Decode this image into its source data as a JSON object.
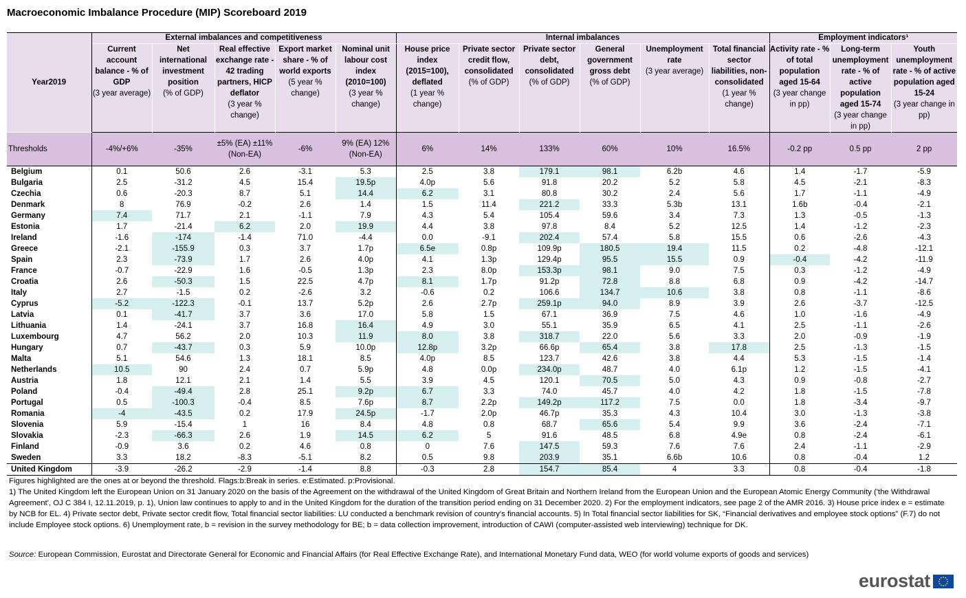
{
  "title": "Macroeconomic Imbalance Procedure (MIP) Scoreboard 2019",
  "year_label": "Year2019",
  "thresholds_label": "Thresholds",
  "groups": [
    {
      "label": "External imbalances and competitiveness"
    },
    {
      "label": "Internal imbalances"
    },
    {
      "label": "Employment indicators¹"
    }
  ],
  "columns": [
    {
      "bold": "Current account balance - % of GDP",
      "normal": "(3 year average)",
      "threshold": "-4%/+6%"
    },
    {
      "bold": "Net international investment position",
      "normal": "(% of GDP)",
      "threshold": "-35%"
    },
    {
      "bold": "Real effective exchange rate - 42 trading partners, HICP deflator",
      "normal": "(3 year % change)",
      "threshold": "±5% (EA) ±11% (Non-EA)"
    },
    {
      "bold": "Export market share - % of world exports",
      "normal": "(5 year % change)",
      "threshold": "-6%"
    },
    {
      "bold": "Nominal unit labour cost index (2010=100)",
      "normal": "(3 year % change)",
      "threshold": "9% (EA) 12% (Non-EA)"
    },
    {
      "bold": "House price index (2015=100), deflated",
      "normal": "(1 year % change)",
      "threshold": "6%"
    },
    {
      "bold": "Private sector credit flow, consolidated",
      "normal": "(% of GDP)",
      "threshold": "14%"
    },
    {
      "bold": "Private sector debt, consolidated",
      "normal": "(% of GDP)",
      "threshold": "133%"
    },
    {
      "bold": "General government gross debt",
      "normal": "(% of GDP)",
      "threshold": "60%"
    },
    {
      "bold": "Unemployment rate",
      "normal": "(3 year average)",
      "threshold": "10%"
    },
    {
      "bold": "Total financial sector liabilities, non-consolidated",
      "normal": "(1 year % change)",
      "threshold": "16.5%"
    },
    {
      "bold": "Activity rate - % of total population aged 15-64",
      "normal": "(3 year change in pp)",
      "threshold": "-0.2 pp"
    },
    {
      "bold": "Long-term unemployment rate - % of active population aged 15-74",
      "normal": "(3 year change in pp)",
      "threshold": "0.5 pp"
    },
    {
      "bold": "Youth unemployment rate - % of active population aged 15-24",
      "normal": "(3 year change in pp)",
      "threshold": "2 pp"
    }
  ],
  "rows": [
    {
      "country": "Belgium",
      "values": [
        "0.1",
        "50.6",
        "2.6",
        "-3.1",
        "5.3",
        "2.5",
        "3.8",
        "179.1",
        "98.1",
        "6.2b",
        "4.6",
        "1.4",
        "-1.7",
        "-5.9"
      ],
      "hl": [
        7,
        8
      ]
    },
    {
      "country": "Bulgaria",
      "values": [
        "2.5",
        "-31.2",
        "4.5",
        "15.4",
        "19.5p",
        "4.0p",
        "5.6",
        "91.8",
        "20.2",
        "5.2",
        "5.8",
        "4.5",
        "-2.1",
        "-8.3"
      ],
      "hl": [
        4
      ]
    },
    {
      "country": "Czechia",
      "values": [
        "0.6",
        "-20.3",
        "8.7",
        "5.1",
        "14.4",
        "6.2",
        "3.1",
        "80.8",
        "30.2",
        "2.4",
        "5.6",
        "1.7",
        "-1.1",
        "-4.9"
      ],
      "hl": [
        4,
        5
      ]
    },
    {
      "country": "Denmark",
      "values": [
        "8",
        "76.9",
        "-0.2",
        "2.6",
        "1.4",
        "1.5",
        "11.4",
        "221.2",
        "33.3",
        "5.3b",
        "13.1",
        "1.6b",
        "-0.4",
        "-2.1"
      ],
      "hl": [
        7
      ]
    },
    {
      "country": "Germany",
      "values": [
        "7.4",
        "71.7",
        "2.1",
        "-1.1",
        "7.9",
        "4.3",
        "5.4",
        "105.4",
        "59.6",
        "3.4",
        "7.3",
        "1.3",
        "-0.5",
        "-1.3"
      ],
      "hl": [
        0
      ]
    },
    {
      "country": "Estonia",
      "values": [
        "1.7",
        "-21.4",
        "6.2",
        "2.0",
        "19.9",
        "4.4",
        "3.8",
        "97.8",
        "8.4",
        "5.2",
        "12.5",
        "1.4",
        "-1.2",
        "-2.3"
      ],
      "hl": [
        2,
        4
      ]
    },
    {
      "country": "Ireland",
      "values": [
        "-1.6",
        "-174",
        "-1.4",
        "71.0",
        "-4.4",
        "0.0",
        "-9.1",
        "202.4",
        "57.4",
        "5.8",
        "15.5",
        "0.6",
        "-2.6",
        "-4.3"
      ],
      "hl": [
        1,
        7
      ]
    },
    {
      "country": "Greece",
      "values": [
        "-2.1",
        "-155.9",
        "0.3",
        "3.7",
        "1.7p",
        "6.5e",
        "0.8p",
        "109.9p",
        "180.5",
        "19.4",
        "11.5",
        "0.2",
        "-4.8",
        "-12.1"
      ],
      "hl": [
        1,
        5,
        8,
        9
      ]
    },
    {
      "country": "Spain",
      "values": [
        "2.3",
        "-73.9",
        "1.7",
        "2.6",
        "4.0p",
        "4.1",
        "1.3p",
        "129.4p",
        "95.5",
        "15.5",
        "0.9",
        "-0.4",
        "-4.2",
        "-11.9"
      ],
      "hl": [
        1,
        8,
        9,
        11
      ]
    },
    {
      "country": "France",
      "values": [
        "-0.7",
        "-22.9",
        "1.6",
        "-0.5",
        "1.3p",
        "2.3",
        "8.0p",
        "153.3p",
        "98.1",
        "9.0",
        "7.5",
        "0.3",
        "-1.2",
        "-4.9"
      ],
      "hl": [
        7,
        8
      ]
    },
    {
      "country": "Croatia",
      "values": [
        "2.6",
        "-50.3",
        "1.5",
        "22.5",
        "4.7p",
        "8.1",
        "1.7p",
        "91.2p",
        "72.8",
        "8.8",
        "6.8",
        "0.9",
        "-4.2",
        "-14.7"
      ],
      "hl": [
        1,
        5,
        8
      ]
    },
    {
      "country": "Italy",
      "values": [
        "2.7",
        "-1.5",
        "0.2",
        "-2.6",
        "3.2",
        "-0.6",
        "0.2",
        "106.6",
        "134.7",
        "10.6",
        "3.8",
        "0.8",
        "-1.1",
        "-8.6"
      ],
      "hl": [
        8,
        9
      ]
    },
    {
      "country": "Cyprus",
      "values": [
        "-5.2",
        "-122.3",
        "-0.1",
        "13.7",
        "5.2p",
        "2.6",
        "2.7p",
        "259.1p",
        "94.0",
        "8.9",
        "3.9",
        "2.6",
        "-3.7",
        "-12.5"
      ],
      "hl": [
        0,
        1,
        7,
        8
      ]
    },
    {
      "country": "Latvia",
      "values": [
        "0.1",
        "-41.7",
        "3.7",
        "3.6",
        "17.0",
        "5.8",
        "1.5",
        "67.1",
        "36.9",
        "7.5",
        "4.6",
        "1.0",
        "-1.6",
        "-4.9"
      ],
      "hl": [
        1
      ]
    },
    {
      "country": "Lithuania",
      "values": [
        "1.4",
        "-24.1",
        "3.7",
        "16.8",
        "16.4",
        "4.9",
        "3.0",
        "55.1",
        "35.9",
        "6.5",
        "4.1",
        "2.5",
        "-1.1",
        "-2.6"
      ],
      "hl": [
        4
      ]
    },
    {
      "country": "Luxembourg",
      "values": [
        "4.7",
        "56.2",
        "2.0",
        "10.3",
        "11.9",
        "8.0",
        "3.8",
        "318.7",
        "22.0",
        "5.6",
        "3.3",
        "2.0",
        "-0.9",
        "-1.9"
      ],
      "hl": [
        4,
        5,
        7
      ]
    },
    {
      "country": "Hungary",
      "values": [
        "0.7",
        "-43.7",
        "0.3",
        "5.9",
        "10.0p",
        "12.8p",
        "3.2p",
        "66.6p",
        "65.4",
        "3.8",
        "17.8",
        "2.5",
        "-1.3",
        "-1.5"
      ],
      "hl": [
        1,
        5,
        8,
        10
      ]
    },
    {
      "country": "Malta",
      "values": [
        "5.1",
        "54.6",
        "1.3",
        "18.1",
        "8.5",
        "4.0p",
        "8.5",
        "123.7",
        "42.6",
        "3.8",
        "4.4",
        "5.3",
        "-1.5",
        "-1.4"
      ],
      "hl": []
    },
    {
      "country": "Netherlands",
      "values": [
        "10.5",
        "90",
        "2.4",
        "0.7",
        "5.9p",
        "4.8",
        "0.0p",
        "234.0p",
        "48.7",
        "4.0",
        "6.1p",
        "1.2",
        "-1.5",
        "-4.1"
      ],
      "hl": [
        0,
        7
      ]
    },
    {
      "country": "Austria",
      "values": [
        "1.8",
        "12.1",
        "2.1",
        "1.4",
        "5.5",
        "3.9",
        "4.5",
        "120.1",
        "70.5",
        "5.0",
        "4.3",
        "0.9",
        "-0.8",
        "-2.7"
      ],
      "hl": [
        8
      ]
    },
    {
      "country": "Poland",
      "values": [
        "-0.4",
        "-49.4",
        "2.8",
        "25.1",
        "9.2p",
        "6.7",
        "3.3",
        "74.0",
        "45.7",
        "4.0",
        "4.2",
        "1.8",
        "-1.5",
        "-7.8"
      ],
      "hl": [
        1,
        4,
        5
      ]
    },
    {
      "country": "Portugal",
      "values": [
        "0.5",
        "-100.3",
        "-0.4",
        "8.5",
        "7.6p",
        "8.7",
        "2.2p",
        "149.2p",
        "117.2",
        "7.5",
        "0.0",
        "1.8",
        "-3.4",
        "-9.7"
      ],
      "hl": [
        1,
        5,
        7,
        8
      ]
    },
    {
      "country": "Romania",
      "values": [
        "-4",
        "-43.5",
        "0.2",
        "17.9",
        "24.5p",
        "-1.7",
        "2.0p",
        "46.7p",
        "35.3",
        "4.3",
        "10.4",
        "3.0",
        "-1.3",
        "-3.8"
      ],
      "hl": [
        0,
        1,
        4
      ]
    },
    {
      "country": "Slovenia",
      "values": [
        "5.9",
        "-15.4",
        "1",
        "16",
        "8.4",
        "4.8",
        "0.8",
        "68.7",
        "65.6",
        "5.4",
        "9.9",
        "3.6",
        "-2.4",
        "-7.1"
      ],
      "hl": [
        8
      ]
    },
    {
      "country": "Slovakia",
      "values": [
        "-2.3",
        "-66.3",
        "2.6",
        "1.9",
        "14.5",
        "6.2",
        "5",
        "91.6",
        "48.5",
        "6.8",
        "4.9e",
        "0.8",
        "-2.4",
        "-6.1"
      ],
      "hl": [
        1,
        4,
        5
      ]
    },
    {
      "country": "Finland",
      "values": [
        "-0.9",
        "3.6",
        "0.2",
        "4.6",
        "0.8",
        "0",
        "7.6",
        "147.5",
        "59.3",
        "7.6",
        "7.6",
        "2.4",
        "-1.1",
        "-2.9"
      ],
      "hl": [
        7
      ]
    },
    {
      "country": "Sweden",
      "values": [
        "3.3",
        "18.2",
        "-8.3",
        "-5.1",
        "8.2",
        "0.5",
        "9.8",
        "203.9",
        "35.1",
        "6.6b",
        "10.6",
        "0.8",
        "-0.4",
        "1.2"
      ],
      "hl": [
        7
      ]
    },
    {
      "country": "United Kingdom",
      "values": [
        "-3.9",
        "-26.2",
        "-2.9",
        "-1.4",
        "8.8",
        "-0.3",
        "2.8",
        "154.7",
        "85.4",
        "4",
        "3.3",
        "0.8",
        "-0.4",
        "-1.8"
      ],
      "hl": [
        7,
        8
      ]
    }
  ],
  "notes": [
    "Figures highlighted are the ones at or beyond the threshold. Flags:b:Break in series. e:Estimated. p:Provisional.",
    "1) The United Kingdom left the European Union on 31 January 2020 on the basis of the Agreement on the withdrawal of the United Kingdom of Great Britain and Northern Ireland from the European Union and the European Atomic Energy Community ('the Withdrawal Agreement', OJ C 384 I, 12.11.2019, p. 1), Union law continues to apply to and in the United Kingdom for the duration of the transition period ending on 31 December 2020. 2) For the employment indicators, see page 2 of the AMR 2016. 3) House price index e = estimate by NCB for EL. 4) Private sector debt, Private sector credit flow, Total financial sector liabilities: LU conducted a benchmark revision of country's financial accounts. 5) In Total financial sector liabilities for SK, “Financial derivatives and employee stock options” (F.7) do not include Employee stock options. 6) Unemployment rate, b = revision in the survey methodology for BE; b = data collection improvement, introduction of CAWI (computer-assisted web interviewing) technique for DK."
  ],
  "source": {
    "label": "Source:",
    "text": "European Commission, Eurostat and Directorate General for Economic and Financial Affairs (for Real Effective Exchange Rate), and International Monetary Fund data, WEO (for world volume exports of goods and services)"
  },
  "logo": {
    "text": "eurostat",
    "flag_color": "#0e47a1",
    "star_color": "#ffdd00"
  },
  "colors": {
    "header": "#e9dcec",
    "threshold_row": "#d9c0df",
    "highlight": "#d6f0f2"
  }
}
